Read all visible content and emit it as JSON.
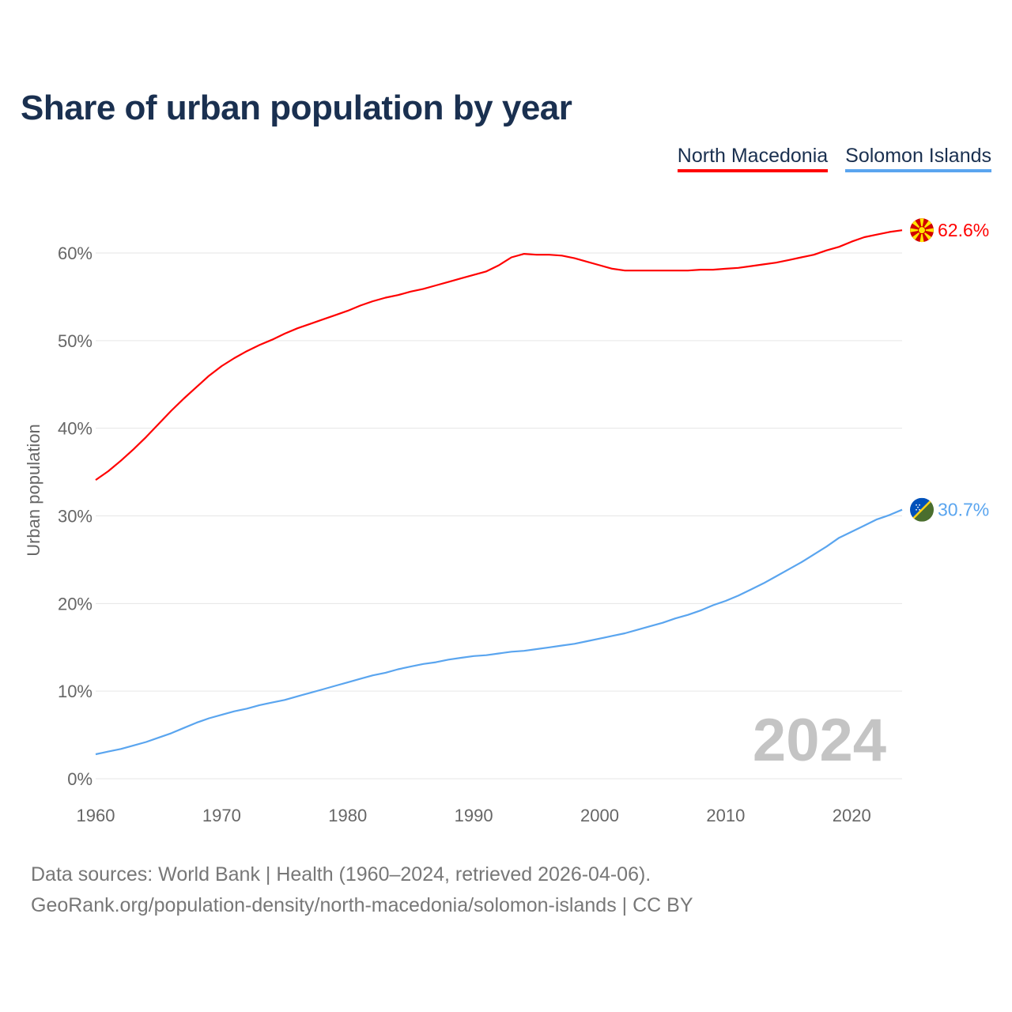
{
  "header": {
    "title": "Share of urban population by year"
  },
  "legend": [
    {
      "label": "North Macedonia",
      "color": "#ff0000"
    },
    {
      "label": "Solomon Islands",
      "color": "#5aa5ef"
    }
  ],
  "footer": {
    "line1": "Data sources: World Bank | Health (1960–2024, retrieved 2026-04-06).",
    "line2": "GeoRank.org/population-density/north-macedonia/solomon-islands | CC BY"
  },
  "chart_data": {
    "type": "line",
    "title": "Share of urban population by year",
    "xlabel": "",
    "ylabel": "Urban population",
    "xlim": [
      1960,
      2024
    ],
    "ylim": [
      0,
      60
    ],
    "x_ticks": [
      1960,
      1970,
      1980,
      1990,
      2000,
      2010,
      2020
    ],
    "y_ticks": [
      0,
      10,
      20,
      30,
      40,
      50,
      60
    ],
    "y_tick_labels": [
      "0%",
      "10%",
      "20%",
      "30%",
      "40%",
      "50%",
      "60%"
    ],
    "grid": true,
    "legend_position": "top-right",
    "year_watermark": "2024",
    "x": [
      1960,
      1961,
      1962,
      1963,
      1964,
      1965,
      1966,
      1967,
      1968,
      1969,
      1970,
      1971,
      1972,
      1973,
      1974,
      1975,
      1976,
      1977,
      1978,
      1979,
      1980,
      1981,
      1982,
      1983,
      1984,
      1985,
      1986,
      1987,
      1988,
      1989,
      1990,
      1991,
      1992,
      1993,
      1994,
      1995,
      1996,
      1997,
      1998,
      1999,
      2000,
      2001,
      2002,
      2003,
      2004,
      2005,
      2006,
      2007,
      2008,
      2009,
      2010,
      2011,
      2012,
      2013,
      2014,
      2015,
      2016,
      2017,
      2018,
      2019,
      2020,
      2021,
      2022,
      2023,
      2024
    ],
    "series": [
      {
        "name": "North Macedonia",
        "color": "#ff0000",
        "end_label": "62.6%",
        "flag": "north-macedonia",
        "values": [
          34.1,
          35.1,
          36.3,
          37.6,
          39.0,
          40.5,
          42.0,
          43.4,
          44.7,
          46.0,
          47.1,
          48.0,
          48.8,
          49.5,
          50.1,
          50.8,
          51.4,
          51.9,
          52.4,
          52.9,
          53.4,
          54.0,
          54.5,
          54.9,
          55.2,
          55.6,
          55.9,
          56.3,
          56.7,
          57.1,
          57.5,
          57.9,
          58.6,
          59.5,
          59.9,
          59.8,
          59.8,
          59.7,
          59.4,
          59.0,
          58.6,
          58.2,
          58.0,
          58.0,
          58.0,
          58.0,
          58.0,
          58.0,
          58.1,
          58.1,
          58.2,
          58.3,
          58.5,
          58.7,
          58.9,
          59.2,
          59.5,
          59.8,
          60.3,
          60.7,
          61.3,
          61.8,
          62.1,
          62.4,
          62.6
        ]
      },
      {
        "name": "Solomon Islands",
        "color": "#5aa5ef",
        "end_label": "30.7%",
        "flag": "solomon-islands",
        "values": [
          2.8,
          3.1,
          3.4,
          3.8,
          4.2,
          4.7,
          5.2,
          5.8,
          6.4,
          6.9,
          7.3,
          7.7,
          8.0,
          8.4,
          8.7,
          9.0,
          9.4,
          9.8,
          10.2,
          10.6,
          11.0,
          11.4,
          11.8,
          12.1,
          12.5,
          12.8,
          13.1,
          13.3,
          13.6,
          13.8,
          14.0,
          14.1,
          14.3,
          14.5,
          14.6,
          14.8,
          15.0,
          15.2,
          15.4,
          15.7,
          16.0,
          16.3,
          16.6,
          17.0,
          17.4,
          17.8,
          18.3,
          18.7,
          19.2,
          19.8,
          20.3,
          20.9,
          21.6,
          22.3,
          23.1,
          23.9,
          24.7,
          25.6,
          26.5,
          27.5,
          28.2,
          28.9,
          29.6,
          30.1,
          30.7
        ]
      }
    ]
  }
}
